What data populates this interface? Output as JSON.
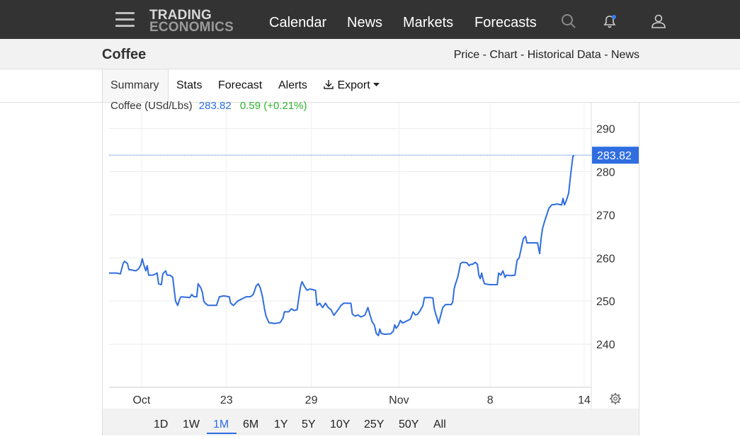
{
  "nav": {
    "logo_line1": "TRADING",
    "logo_line2": "ECONOMICS",
    "links": [
      "Calendar",
      "News",
      "Markets",
      "Forecasts"
    ]
  },
  "subheader": {
    "title": "Coffee",
    "links": "Price - Chart - Historical Data - News"
  },
  "tabs": {
    "summary": "Summary",
    "stats": "Stats",
    "forecast": "Forecast",
    "alerts": "Alerts",
    "export": "Export"
  },
  "chart_header": {
    "name": "Coffee (USd/Lbs)",
    "price": "283.82",
    "change": "0.59 (+0.21%)"
  },
  "ranges": [
    "1D",
    "1W",
    "1M",
    "6M",
    "1Y",
    "5Y",
    "10Y",
    "25Y",
    "50Y",
    "All"
  ],
  "active_range": "1M",
  "colors": {
    "line": "#2f6de1",
    "change": "#2db42d",
    "label_bg": "#2f6de1"
  },
  "chart_data": {
    "type": "line",
    "title": "Coffee (USd/Lbs)",
    "last_value": "283.82",
    "ylim": [
      230,
      296
    ],
    "y_ticks": [
      240,
      250,
      260,
      270,
      280,
      290
    ],
    "x_ticks": [
      {
        "label": "Oct",
        "x": 10.2
      },
      {
        "label": "23",
        "x": 16.2
      },
      {
        "label": "29",
        "x": 22.2
      },
      {
        "label": "Nov",
        "x": 28.4
      },
      {
        "label": "8",
        "x": 34.85
      },
      {
        "label": "14",
        "x": 41.5
      }
    ],
    "xlim": [
      7.9,
      42.0
    ],
    "grid": true,
    "series": [
      {
        "values": [
          [
            7.9,
            256.5
          ],
          [
            8.4,
            256.5
          ],
          [
            8.7,
            256.3
          ],
          [
            8.9,
            258.8
          ],
          [
            9.0,
            259.2
          ],
          [
            9.2,
            258.7
          ],
          [
            9.3,
            257.3
          ],
          [
            9.5,
            257.2
          ],
          [
            9.8,
            257.0
          ],
          [
            10.0,
            257.5
          ],
          [
            10.15,
            258.4
          ],
          [
            10.25,
            259.8
          ],
          [
            10.35,
            258.5
          ],
          [
            10.5,
            257.0
          ],
          [
            10.6,
            258.2
          ],
          [
            10.7,
            256.0
          ],
          [
            11.0,
            256.0
          ],
          [
            11.3,
            256.5
          ],
          [
            11.4,
            254.0
          ],
          [
            11.6,
            253.8
          ],
          [
            11.7,
            256.3
          ],
          [
            11.9,
            257.0
          ],
          [
            12.0,
            256.0
          ],
          [
            12.2,
            256.0
          ],
          [
            12.4,
            255.5
          ],
          [
            12.6,
            250.0
          ],
          [
            12.75,
            249.0
          ],
          [
            12.9,
            250.5
          ],
          [
            13.0,
            251.0
          ],
          [
            13.6,
            250.8
          ],
          [
            13.75,
            251.5
          ],
          [
            13.9,
            251.0
          ],
          [
            14.1,
            251.0
          ],
          [
            14.2,
            254.0
          ],
          [
            14.4,
            253.0
          ],
          [
            14.5,
            252.0
          ],
          [
            14.6,
            250.0
          ],
          [
            14.7,
            249.5
          ],
          [
            14.9,
            249.0
          ],
          [
            15.2,
            249.0
          ],
          [
            15.5,
            249.0
          ],
          [
            15.7,
            251.0
          ],
          [
            16.0,
            251.2
          ],
          [
            16.4,
            251.0
          ],
          [
            16.5,
            249.5
          ],
          [
            16.7,
            249.0
          ],
          [
            17.0,
            250.0
          ],
          [
            17.3,
            250.5
          ],
          [
            17.6,
            251.0
          ],
          [
            17.9,
            251.0
          ],
          [
            18.1,
            251.5
          ],
          [
            18.3,
            253.5
          ],
          [
            18.45,
            254.0
          ],
          [
            18.6,
            253.0
          ],
          [
            18.75,
            251.0
          ],
          [
            18.9,
            248.0
          ],
          [
            19.0,
            246.5
          ],
          [
            19.2,
            245.0
          ],
          [
            19.6,
            244.8
          ],
          [
            20.0,
            245.0
          ],
          [
            20.2,
            246.0
          ],
          [
            20.3,
            247.5
          ],
          [
            20.6,
            247.5
          ],
          [
            20.8,
            248.2
          ],
          [
            21.0,
            247.8
          ],
          [
            21.2,
            248.0
          ],
          [
            21.35,
            251.5
          ],
          [
            21.45,
            253.5
          ],
          [
            21.55,
            254.5
          ],
          [
            21.7,
            253.5
          ],
          [
            21.9,
            252.5
          ],
          [
            22.1,
            252.8
          ],
          [
            22.5,
            252.5
          ],
          [
            22.6,
            249.0
          ],
          [
            22.8,
            249.5
          ],
          [
            23.0,
            248.5
          ],
          [
            23.2,
            249.5
          ],
          [
            23.4,
            248.5
          ],
          [
            23.6,
            248.0
          ],
          [
            23.8,
            246.7
          ],
          [
            24.1,
            248.0
          ],
          [
            24.3,
            249.0
          ],
          [
            24.5,
            249.5
          ],
          [
            24.7,
            249.5
          ],
          [
            25.0,
            249.5
          ],
          [
            25.1,
            247.0
          ],
          [
            25.3,
            246.5
          ],
          [
            25.5,
            246.8
          ],
          [
            25.7,
            246.3
          ],
          [
            25.85,
            246.5
          ],
          [
            26.0,
            246.8
          ],
          [
            26.2,
            248.5
          ],
          [
            26.35,
            246.8
          ],
          [
            26.5,
            245.2
          ],
          [
            26.65,
            244.5
          ],
          [
            26.8,
            242.5
          ],
          [
            26.95,
            242.0
          ],
          [
            27.05,
            243.5
          ],
          [
            27.15,
            242.5
          ],
          [
            27.4,
            242.3
          ],
          [
            27.8,
            242.4
          ],
          [
            28.0,
            243.0
          ],
          [
            28.1,
            244.5
          ],
          [
            28.2,
            243.7
          ],
          [
            28.35,
            244.3
          ],
          [
            28.5,
            245.5
          ],
          [
            28.65,
            244.9
          ],
          [
            28.9,
            245.3
          ],
          [
            29.2,
            245.8
          ],
          [
            29.4,
            247.5
          ],
          [
            29.55,
            246.8
          ],
          [
            29.7,
            246.9
          ],
          [
            29.9,
            247.8
          ],
          [
            30.1,
            249.0
          ],
          [
            30.2,
            250.8
          ],
          [
            30.6,
            250.8
          ],
          [
            30.8,
            250.7
          ],
          [
            30.9,
            248.2
          ],
          [
            31.0,
            247.0
          ],
          [
            31.1,
            246.0
          ],
          [
            31.2,
            244.8
          ],
          [
            31.3,
            246.0
          ],
          [
            31.5,
            248.5
          ],
          [
            31.7,
            249.2
          ],
          [
            32.1,
            249.2
          ],
          [
            32.2,
            249.8
          ],
          [
            32.3,
            252.8
          ],
          [
            32.4,
            254.0
          ],
          [
            32.55,
            255.5
          ],
          [
            32.65,
            257.0
          ],
          [
            32.75,
            258.7
          ],
          [
            32.9,
            259.0
          ],
          [
            33.2,
            258.9
          ],
          [
            33.35,
            258.2
          ],
          [
            33.45,
            258.5
          ],
          [
            33.6,
            258.5
          ],
          [
            33.8,
            259.0
          ],
          [
            33.95,
            258.5
          ],
          [
            34.05,
            256.0
          ],
          [
            34.15,
            255.2
          ],
          [
            34.25,
            256.5
          ],
          [
            34.35,
            255.0
          ],
          [
            34.45,
            254.0
          ],
          [
            34.8,
            253.8
          ],
          [
            35.2,
            253.8
          ],
          [
            35.35,
            253.8
          ],
          [
            35.45,
            256.5
          ],
          [
            35.6,
            256.0
          ],
          [
            35.75,
            257.0
          ],
          [
            35.9,
            255.5
          ],
          [
            36.0,
            256.0
          ],
          [
            36.3,
            255.9
          ],
          [
            36.6,
            256.0
          ],
          [
            36.75,
            259.5
          ],
          [
            36.9,
            260.0
          ],
          [
            37.1,
            263.0
          ],
          [
            37.2,
            264.5
          ],
          [
            37.35,
            265.0
          ],
          [
            37.45,
            263.5
          ],
          [
            37.8,
            263.5
          ],
          [
            38.2,
            263.5
          ],
          [
            38.35,
            261.0
          ],
          [
            38.45,
            264.5
          ],
          [
            38.55,
            266.8
          ],
          [
            38.7,
            268.5
          ],
          [
            38.85,
            270.0
          ],
          [
            39.0,
            271.5
          ],
          [
            39.2,
            272.3
          ],
          [
            39.6,
            272.5
          ],
          [
            39.9,
            272.3
          ],
          [
            40.0,
            273.8
          ],
          [
            40.1,
            272.3
          ],
          [
            40.2,
            273.0
          ],
          [
            40.4,
            275.0
          ],
          [
            40.55,
            279.5
          ],
          [
            40.7,
            283.5
          ],
          [
            40.8,
            283.82
          ]
        ]
      }
    ]
  }
}
